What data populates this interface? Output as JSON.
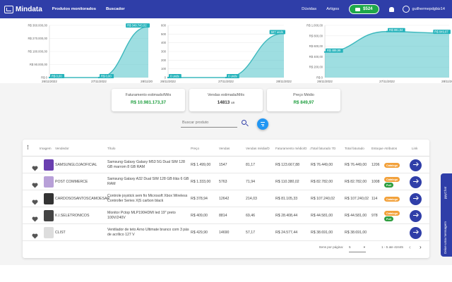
{
  "app": {
    "logo": "Mindata",
    "nav": [
      "Produtos monitorados",
      "Buscador"
    ],
    "right_links": [
      "Dúvidas",
      "Artigos"
    ],
    "credits": "$524",
    "user": "guilhermepdgbiz14"
  },
  "chart_data": [
    {
      "type": "area",
      "x": [
        "26/11/2022",
        "27/11/2022",
        "28/11/2022"
      ],
      "y_ticks": [
        "R$ 360.000,00",
        "R$ 270.000,00",
        "R$ 180.000,00",
        "R$ 90.000,00",
        "R$ 0"
      ],
      "values": [
        0,
        0,
        349743.02
      ],
      "point_labels": [
        "R$ 0,00",
        "R$ 0,00",
        "R$ 349.743,02"
      ],
      "ylim": [
        0,
        360000
      ],
      "color": "#4fc3c8"
    },
    {
      "type": "area",
      "x": [
        "26/11/2022",
        "27/11/2022",
        "28/11/2022"
      ],
      "y_ticks": [
        "600",
        "500",
        "400",
        "300",
        "200",
        "100",
        "0"
      ],
      "values": [
        0,
        0,
        507
      ],
      "point_labels": [
        "0 unds",
        "0 unds",
        "507 unds"
      ],
      "ylim": [
        0,
        600
      ],
      "color": "#4fc3c8"
    },
    {
      "type": "area",
      "x": [
        "26/11/2022",
        "27/11/2022",
        "28/11/2022"
      ],
      "y_ticks": [
        "R$ 1.000,00",
        "R$ 800,00",
        "R$ 600,00",
        "R$ 400,00",
        "R$ 200,00",
        "R$ 0"
      ],
      "values": [
        489.99,
        881.64,
        849.97
      ],
      "point_labels": [
        "R$ 489,99",
        "R$ 881,64",
        "R$ 849,97"
      ],
      "ylim": [
        0,
        1000
      ],
      "color": "#4fc3c8"
    }
  ],
  "stats": [
    {
      "label": "Faturamento estimado/Mês",
      "value": "R$ 10.981.173,37",
      "color": "#1e9e3e"
    },
    {
      "label": "Vendas estimada/Mês",
      "value": "14813",
      "unit": "un",
      "color": "#222"
    },
    {
      "label": "Preço Médio",
      "value": "R$ 849,97",
      "color": "#1e9e3e"
    }
  ],
  "search": {
    "placeholder": "Buscar produto"
  },
  "table": {
    "headers": [
      "Imagem",
      "Vendedor",
      "Título",
      "Preço",
      "Vendas",
      "Vendas média/D",
      "Faturamento médio/D",
      "Total faturado 7D",
      "Total faturado",
      "Estoque",
      "Atributos",
      "Link"
    ],
    "rows": [
      {
        "seller": "SAMSUNGLOJAOFICIAL",
        "title": "Samsung Galaxy Galaxy M53 5G Dual SIM 128 GB marrom 8 GB RAM",
        "price": "R$ 1.499,00",
        "sales": "1547",
        "avg_sales": "81,17",
        "avg_rev": "R$ 123.667,88",
        "rev7": "R$ 76.449,00",
        "rev_total": "R$ 76.449,00",
        "stock": "1206",
        "tags": [
          "Catalogo"
        ],
        "thumb": "#6a3fb0"
      },
      {
        "seller": "POST COMMERCE",
        "title": "Samsung Galaxy A32 Dual SIM 128 GB lilás 6 GB RAM",
        "price": "R$ 1.333,00",
        "sales": "5763",
        "avg_sales": "71,94",
        "avg_rev": "R$ 110.380,02",
        "rev7": "R$ 82.782,00",
        "rev_total": "R$ 82.782,00",
        "stock": "1008",
        "tags": [
          "Catalogo",
          "Full"
        ],
        "thumb": "#b8a0d8"
      },
      {
        "seller": "CARDOSOSANTOSCAMOESAR",
        "title": "Controle joystick sem fio Microsoft Xbox Wireless Controller Series X|S carbon black",
        "price": "R$ 378,94",
        "sales": "12642",
        "avg_sales": "214,03",
        "avg_rev": "R$ 81.105,33",
        "rev7": "R$ 107.240,02",
        "rev_total": "R$ 107.240,02",
        "stock": "114",
        "tags": [
          "Catalogo"
        ],
        "thumb": "#333333"
      },
      {
        "seller": "K.I.SELETRONICOS",
        "title": "Monitor Pctop MLP190HDMI led 19&quot; preto 100V/240V",
        "price": "R$ 409,00",
        "sales": "8814",
        "avg_sales": "69,46",
        "avg_rev": "R$ 28.408,44",
        "rev7": "R$ 44.581,00",
        "rev_total": "R$ 44.581,00",
        "stock": "978",
        "tags": [
          "Catalogo",
          "Full"
        ],
        "thumb": "#444444"
      },
      {
        "seller": "CLIST",
        "title": "Ventilador de teto Arno Ultimate branco com 3 pás de acrílico 127 V",
        "price": "R$ 429,90",
        "sales": "14690",
        "avg_sales": "57,17",
        "avg_rev": "R$ 24.577,44",
        "rev7": "R$ 38.691,00",
        "rev_total": "R$ 38.691,00",
        "stock": "",
        "tags": [],
        "thumb": "#dddddd"
      }
    ],
    "pager": {
      "items_label": "Itens por página:",
      "per_page": "5",
      "range": "1 - 5 ate 42445"
    }
  },
  "chat": {
    "label": "Deixe uma mensagem",
    "sub": "ppyChat"
  },
  "colors": {
    "primary": "#2f3ea8",
    "area": "#4fc3c8",
    "green": "#1e9e3e",
    "orange": "#f2a13b",
    "full": "#2e9e3f"
  }
}
